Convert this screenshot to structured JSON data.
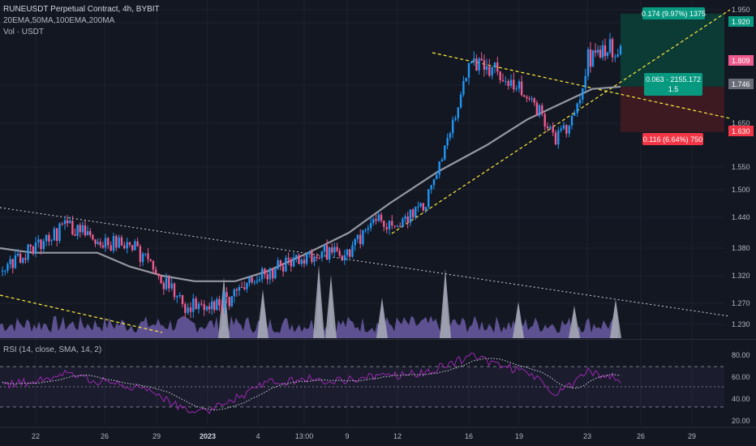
{
  "header": {
    "title": "RUNEUSDT Perpetual Contract, 4h, BYBIT",
    "indicators": "20EMA,50MA,100EMA,200MA",
    "volume": "Vol · USDT",
    "rsi": "RSI (14, close, SMA, 14, 2)"
  },
  "colors": {
    "background": "#131722",
    "up": "#2196f3",
    "down": "#ef5b8e",
    "ma": "#9598a1",
    "trendline": "#ffeb3b",
    "volume": "#6b5ca5",
    "volume_spike": "#a8abb5",
    "rsi": "#9c27b0",
    "rsi_ma": "#d1d4dc",
    "target_zone": "#0c3a35",
    "stop_zone": "#3d1a22",
    "label_green": "#089981",
    "label_red": "#f23645"
  },
  "chart_data": [
    {
      "type": "candlestick",
      "symbol": "RUNEUSDT",
      "interval": "4h",
      "exchange": "BYBIT",
      "y_axis": {
        "ticks": [
          1.95,
          1.85,
          1.75,
          1.65,
          1.55,
          1.5,
          1.44,
          1.38,
          1.32,
          1.27,
          1.23
        ],
        "scale": "log"
      },
      "x_axis": {
        "ticks": [
          "22",
          "26",
          "29",
          "2023",
          "4",
          "13:00",
          "9",
          "12",
          "16",
          "19",
          "23",
          "26",
          "29"
        ]
      },
      "price_path": [
        [
          "22",
          1.33
        ],
        [
          "23",
          1.38
        ],
        [
          "24",
          1.42
        ],
        [
          "26",
          1.39
        ],
        [
          "28",
          1.39
        ],
        [
          "29",
          1.3
        ],
        [
          "30",
          1.27
        ],
        [
          "31",
          1.26
        ],
        [
          "2",
          1.29
        ],
        [
          "4",
          1.32
        ],
        [
          "6",
          1.36
        ],
        [
          "7",
          1.37
        ],
        [
          "8",
          1.37
        ],
        [
          "9",
          1.44
        ],
        [
          "10",
          1.42
        ],
        [
          "11",
          1.47
        ],
        [
          "12",
          1.58
        ],
        [
          "13",
          1.78
        ],
        [
          "14",
          1.78
        ],
        [
          "15",
          1.77
        ],
        [
          "16",
          1.74
        ],
        [
          "18",
          1.68
        ],
        [
          "19",
          1.61
        ],
        [
          "20",
          1.66
        ],
        [
          "21",
          1.79
        ],
        [
          "22",
          1.8
        ],
        [
          "23",
          1.81
        ],
        [
          "24",
          1.809
        ]
      ],
      "moving_average": [
        [
          "22",
          1.38
        ],
        [
          "24",
          1.37
        ],
        [
          "26",
          1.37
        ],
        [
          "28",
          1.37
        ],
        [
          "30",
          1.34
        ],
        [
          "2",
          1.32
        ],
        [
          "4",
          1.31
        ],
        [
          "6",
          1.31
        ],
        [
          "8",
          1.33
        ],
        [
          "9",
          1.37
        ],
        [
          "11",
          1.41
        ],
        [
          "12",
          1.47
        ],
        [
          "14",
          1.54
        ],
        [
          "16",
          1.6
        ],
        [
          "18",
          1.66
        ],
        [
          "20",
          1.7
        ],
        [
          "22",
          1.74
        ],
        [
          "24",
          1.746
        ]
      ],
      "price_labels": [
        {
          "value": "1.920",
          "color": "#089981"
        },
        {
          "value": "1.809",
          "color": "#ef5b8e"
        },
        {
          "value": "1.746",
          "color": "#6a6d78"
        },
        {
          "value": "1.630",
          "color": "#f23645"
        }
      ],
      "position": {
        "entry": 1.746,
        "target": 1.92,
        "stop": 1.63,
        "target_label": "0.174 (9.97%) 1375",
        "stop_label": "0.116 (6.64%) 750",
        "entry_label_1": "0.063 · 2155.172",
        "entry_label_2": "1.5"
      },
      "trendlines": [
        "descending triangle upper",
        "ascending support",
        "long-term descending",
        "lower channel"
      ]
    },
    {
      "type": "line",
      "name": "RSI (14, close, SMA, 14, 2)",
      "y_axis": {
        "ticks": [
          80.0,
          60.0,
          40.0,
          20.0
        ],
        "bands": [
          30,
          50,
          70
        ]
      },
      "rsi": [
        [
          "22",
          50
        ],
        [
          "23",
          56
        ],
        [
          "24",
          62
        ],
        [
          "26",
          55
        ],
        [
          "28",
          52
        ],
        [
          "29",
          38
        ],
        [
          "30",
          28
        ],
        [
          "31",
          25
        ],
        [
          "2",
          40
        ],
        [
          "4",
          52
        ],
        [
          "6",
          58
        ],
        [
          "7",
          56
        ],
        [
          "8",
          57
        ],
        [
          "9",
          62
        ],
        [
          "10",
          60
        ],
        [
          "11",
          64
        ],
        [
          "12",
          70
        ],
        [
          "13",
          80
        ],
        [
          "14",
          75
        ],
        [
          "15",
          72
        ],
        [
          "16",
          66
        ],
        [
          "18",
          58
        ],
        [
          "19",
          44
        ],
        [
          "20",
          52
        ],
        [
          "21",
          66
        ],
        [
          "22",
          62
        ],
        [
          "23",
          60
        ],
        [
          "24",
          56
        ]
      ]
    }
  ]
}
